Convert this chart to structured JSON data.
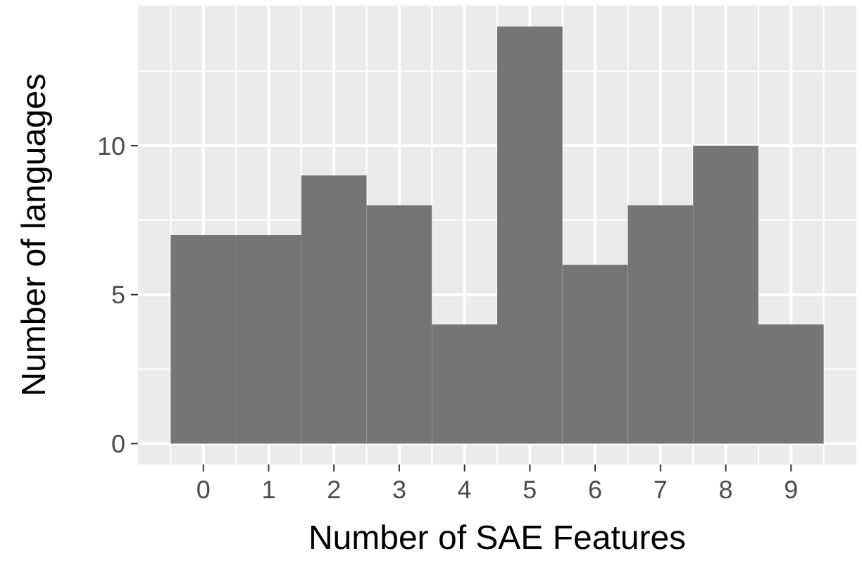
{
  "chart_data": {
    "type": "histogram",
    "xlabel": "Number of SAE Features",
    "ylabel": "Number of languages",
    "bins": [
      -0.5,
      0.5,
      1.5,
      2.5,
      3.5,
      4.5,
      5.5,
      6.5,
      7.5,
      8.5,
      9.5
    ],
    "values": [
      7,
      7,
      9,
      8,
      4,
      14,
      6,
      8,
      10,
      4
    ],
    "color": "#757575",
    "xlim": [
      -1,
      10
    ],
    "xticks": [
      0,
      1,
      2,
      3,
      4,
      5,
      6,
      7,
      8,
      9
    ],
    "ylim": [
      -0.7,
      14.7
    ],
    "yticks": [
      0,
      5,
      10
    ],
    "grid": true
  }
}
